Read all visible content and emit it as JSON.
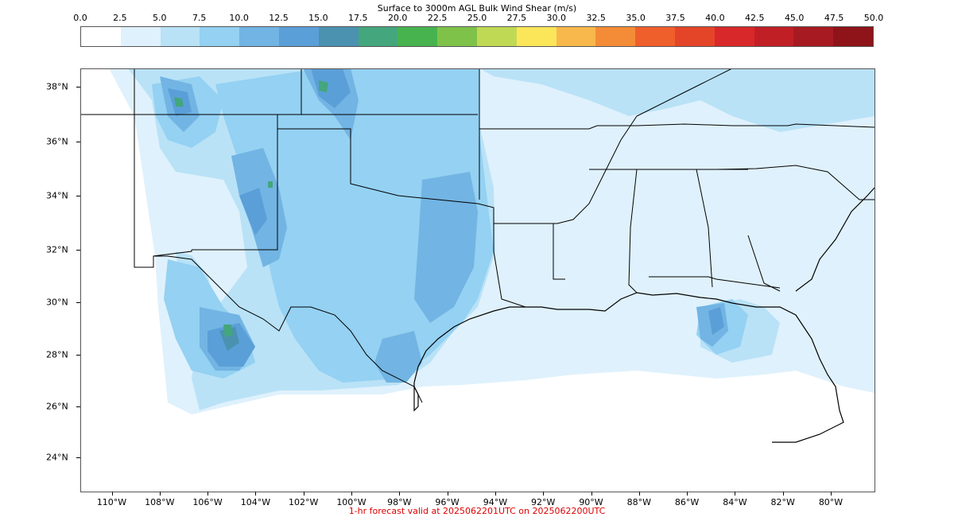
{
  "colorbar": {
    "title": "Surface to 3000m AGL Bulk Wind Shear (m/s)",
    "ticks": [
      "0.0",
      "2.5",
      "5.0",
      "7.5",
      "10.0",
      "12.5",
      "15.0",
      "17.5",
      "20.0",
      "22.5",
      "25.0",
      "27.5",
      "30.0",
      "32.5",
      "35.0",
      "37.5",
      "40.0",
      "42.5",
      "45.0",
      "47.5",
      "50.0"
    ],
    "colors": [
      "#ffffff",
      "#dff1fc",
      "#b9e2f7",
      "#94d1f2",
      "#72b4e3",
      "#5b9fd8",
      "#4a92b0",
      "#44a67c",
      "#47b34f",
      "#7fc24a",
      "#c0d955",
      "#fbe65a",
      "#f8b84b",
      "#f48c37",
      "#ef5f2b",
      "#e44528",
      "#d9282a",
      "#c11f26",
      "#a81a22",
      "#8e1419"
    ]
  },
  "map": {
    "lat_labels": [
      "38°N",
      "36°N",
      "34°N",
      "32°N",
      "30°N",
      "28°N",
      "26°N",
      "24°N"
    ],
    "lat_values": [
      38,
      36,
      34,
      32,
      30,
      28,
      26,
      24
    ],
    "lon_labels": [
      "110°W",
      "108°W",
      "106°W",
      "104°W",
      "102°W",
      "100°W",
      "98°W",
      "96°W",
      "94°W",
      "92°W",
      "90°W",
      "88°W",
      "86°W",
      "84°W",
      "82°W",
      "80°W"
    ],
    "lon_values": [
      -110,
      -108,
      -106,
      -104,
      -102,
      -100,
      -98,
      -96,
      -94,
      -92,
      -90,
      -88,
      -86,
      -84,
      -82,
      -80
    ]
  },
  "footer": "1-hr forecast valid at 2025062201UTC on 2025062200UTC"
}
